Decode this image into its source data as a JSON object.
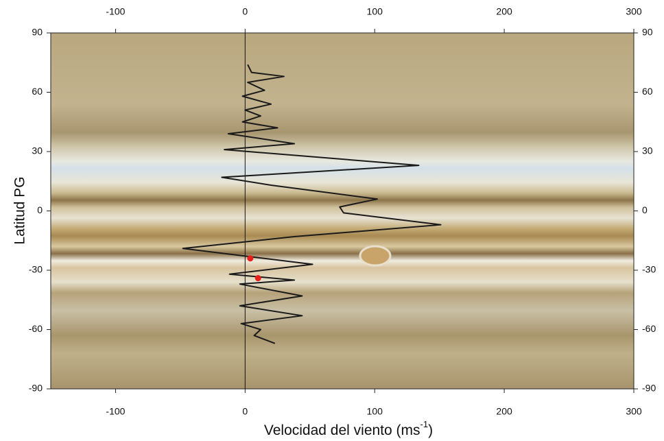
{
  "chart_data": {
    "type": "line",
    "xlabel": {
      "text": "Velocidad del viento (ms",
      "sup": "-1",
      "after": ")"
    },
    "ylabel": "Latitud PG",
    "xlim": [
      -150,
      300
    ],
    "ylim": [
      -90,
      90
    ],
    "xticks": [
      -100,
      0,
      100,
      200,
      300
    ],
    "yticks": [
      -90,
      -60,
      -30,
      0,
      30,
      60,
      90
    ],
    "vline": 0,
    "series": [
      {
        "color": "#1a1a1a",
        "x": [
          2,
          5,
          30,
          2,
          15,
          -2,
          20,
          0,
          12,
          -2,
          25,
          -13,
          38,
          -16,
          134,
          -18,
          20,
          102,
          73,
          76,
          151,
          38,
          -48,
          52,
          -12,
          38,
          -4,
          44,
          -4,
          44,
          -3,
          12,
          7,
          23
        ],
        "y": [
          74,
          70,
          68,
          65,
          61,
          58,
          54,
          51,
          48,
          45,
          42,
          39,
          34,
          31,
          23,
          17,
          13,
          6,
          2,
          -1,
          -7,
          -13,
          -19,
          -27,
          -32,
          -35,
          -37,
          -43,
          -48,
          -53,
          -57,
          -60,
          -63,
          -67
        ]
      },
      {
        "type": "scatter",
        "color": "#e8201c",
        "x": [
          4,
          10
        ],
        "y": [
          -24,
          -34
        ]
      }
    ]
  }
}
